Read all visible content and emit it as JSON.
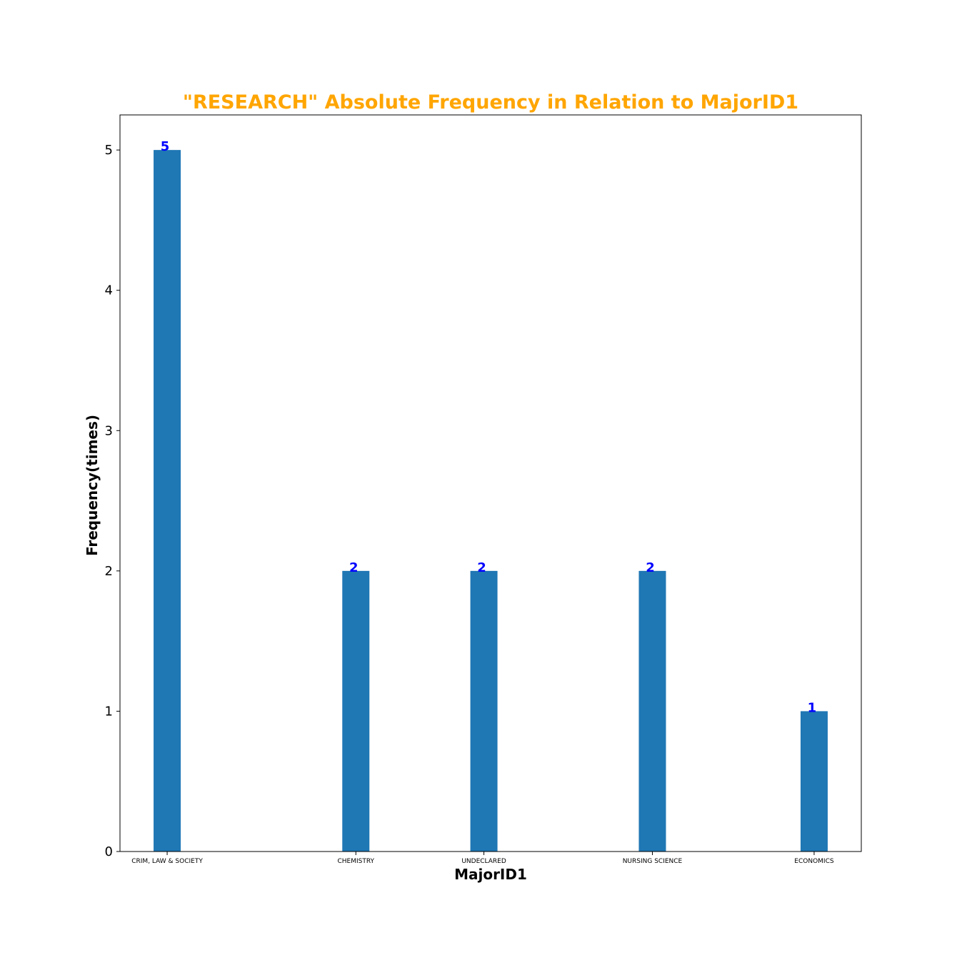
{
  "chart_data": {
    "type": "bar",
    "title": "\"RESEARCH\" Absolute Frequency in Relation to MajorID1",
    "xlabel": "MajorID1",
    "ylabel": "Frequency(times)",
    "categories": [
      "CRIM, LAW & SOCIETY",
      "CHEMISTRY",
      "UNDECLARED",
      "NURSING SCIENCE",
      "ECONOMICS"
    ],
    "x_positions": [
      0.4,
      1.8,
      2.75,
      4.0,
      5.2
    ],
    "x_range": [
      0.05,
      5.55
    ],
    "values": [
      5,
      2,
      2,
      2,
      1
    ],
    "ylim": [
      0,
      5.25
    ],
    "yticks": [
      0,
      1,
      2,
      3,
      4,
      5
    ],
    "ytick_labels": [
      "0",
      "1",
      "2",
      "3",
      "4",
      "5"
    ],
    "data_labels": [
      "5",
      "2",
      "2",
      "2",
      "1"
    ],
    "grid": false,
    "colors": {
      "bar": "#1f77b4",
      "title": "#ffa500",
      "data_label": "#0000ff"
    }
  }
}
